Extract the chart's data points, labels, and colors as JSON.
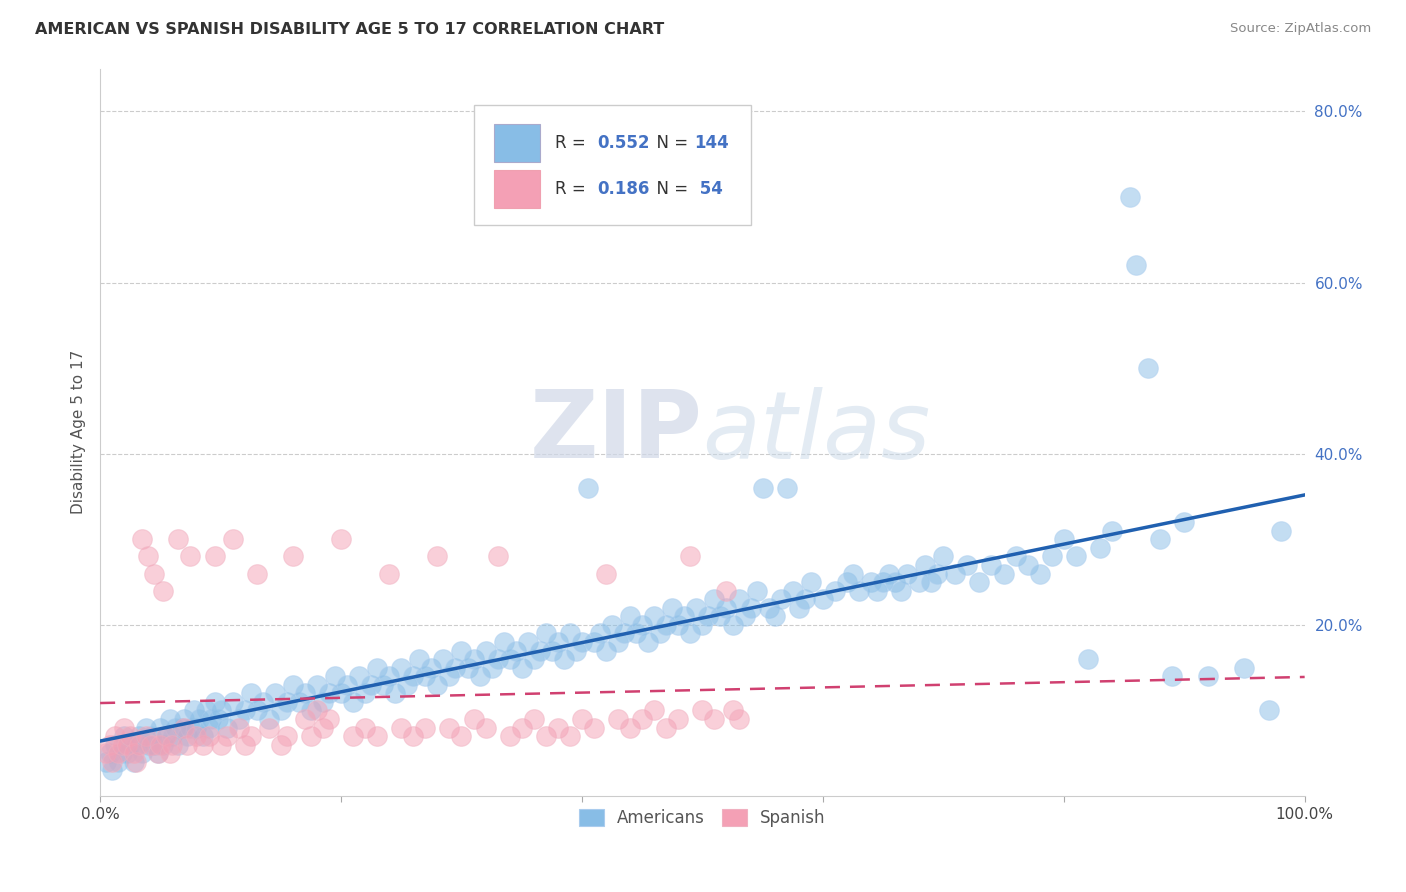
{
  "title": "AMERICAN VS SPANISH DISABILITY AGE 5 TO 17 CORRELATION CHART",
  "source": "Source: ZipAtlas.com",
  "ylabel": "Disability Age 5 to 17",
  "xlim": [
    0.0,
    1.0
  ],
  "ylim": [
    0.0,
    0.85
  ],
  "legend_label1": "Americans",
  "legend_label2": "Spanish",
  "watermark_zip": "ZIP",
  "watermark_atlas": "atlas",
  "blue_color": "#88bde6",
  "pink_color": "#f4a0b5",
  "blue_line_color": "#2060b0",
  "pink_line_color": "#d04070",
  "blue_scatter": [
    [
      0.005,
      0.04
    ],
    [
      0.008,
      0.05
    ],
    [
      0.01,
      0.03
    ],
    [
      0.012,
      0.06
    ],
    [
      0.015,
      0.04
    ],
    [
      0.018,
      0.05
    ],
    [
      0.02,
      0.07
    ],
    [
      0.022,
      0.05
    ],
    [
      0.025,
      0.06
    ],
    [
      0.028,
      0.04
    ],
    [
      0.03,
      0.06
    ],
    [
      0.032,
      0.07
    ],
    [
      0.035,
      0.05
    ],
    [
      0.038,
      0.08
    ],
    [
      0.04,
      0.06
    ],
    [
      0.042,
      0.07
    ],
    [
      0.045,
      0.06
    ],
    [
      0.048,
      0.05
    ],
    [
      0.05,
      0.08
    ],
    [
      0.052,
      0.06
    ],
    [
      0.055,
      0.07
    ],
    [
      0.058,
      0.09
    ],
    [
      0.06,
      0.07
    ],
    [
      0.062,
      0.08
    ],
    [
      0.065,
      0.06
    ],
    [
      0.068,
      0.08
    ],
    [
      0.07,
      0.09
    ],
    [
      0.072,
      0.07
    ],
    [
      0.075,
      0.08
    ],
    [
      0.078,
      0.1
    ],
    [
      0.08,
      0.08
    ],
    [
      0.082,
      0.09
    ],
    [
      0.085,
      0.07
    ],
    [
      0.088,
      0.1
    ],
    [
      0.09,
      0.08
    ],
    [
      0.092,
      0.09
    ],
    [
      0.095,
      0.11
    ],
    [
      0.098,
      0.09
    ],
    [
      0.1,
      0.1
    ],
    [
      0.105,
      0.08
    ],
    [
      0.11,
      0.11
    ],
    [
      0.115,
      0.09
    ],
    [
      0.12,
      0.1
    ],
    [
      0.125,
      0.12
    ],
    [
      0.13,
      0.1
    ],
    [
      0.135,
      0.11
    ],
    [
      0.14,
      0.09
    ],
    [
      0.145,
      0.12
    ],
    [
      0.15,
      0.1
    ],
    [
      0.155,
      0.11
    ],
    [
      0.16,
      0.13
    ],
    [
      0.165,
      0.11
    ],
    [
      0.17,
      0.12
    ],
    [
      0.175,
      0.1
    ],
    [
      0.18,
      0.13
    ],
    [
      0.185,
      0.11
    ],
    [
      0.19,
      0.12
    ],
    [
      0.195,
      0.14
    ],
    [
      0.2,
      0.12
    ],
    [
      0.205,
      0.13
    ],
    [
      0.21,
      0.11
    ],
    [
      0.215,
      0.14
    ],
    [
      0.22,
      0.12
    ],
    [
      0.225,
      0.13
    ],
    [
      0.23,
      0.15
    ],
    [
      0.235,
      0.13
    ],
    [
      0.24,
      0.14
    ],
    [
      0.245,
      0.12
    ],
    [
      0.25,
      0.15
    ],
    [
      0.255,
      0.13
    ],
    [
      0.26,
      0.14
    ],
    [
      0.265,
      0.16
    ],
    [
      0.27,
      0.14
    ],
    [
      0.275,
      0.15
    ],
    [
      0.28,
      0.13
    ],
    [
      0.285,
      0.16
    ],
    [
      0.29,
      0.14
    ],
    [
      0.295,
      0.15
    ],
    [
      0.3,
      0.17
    ],
    [
      0.305,
      0.15
    ],
    [
      0.31,
      0.16
    ],
    [
      0.315,
      0.14
    ],
    [
      0.32,
      0.17
    ],
    [
      0.325,
      0.15
    ],
    [
      0.33,
      0.16
    ],
    [
      0.335,
      0.18
    ],
    [
      0.34,
      0.16
    ],
    [
      0.345,
      0.17
    ],
    [
      0.35,
      0.15
    ],
    [
      0.355,
      0.18
    ],
    [
      0.36,
      0.16
    ],
    [
      0.365,
      0.17
    ],
    [
      0.37,
      0.19
    ],
    [
      0.375,
      0.17
    ],
    [
      0.38,
      0.18
    ],
    [
      0.385,
      0.16
    ],
    [
      0.39,
      0.19
    ],
    [
      0.395,
      0.17
    ],
    [
      0.4,
      0.18
    ],
    [
      0.405,
      0.36
    ],
    [
      0.41,
      0.18
    ],
    [
      0.415,
      0.19
    ],
    [
      0.42,
      0.17
    ],
    [
      0.425,
      0.2
    ],
    [
      0.43,
      0.18
    ],
    [
      0.435,
      0.19
    ],
    [
      0.44,
      0.21
    ],
    [
      0.445,
      0.19
    ],
    [
      0.45,
      0.2
    ],
    [
      0.455,
      0.18
    ],
    [
      0.46,
      0.21
    ],
    [
      0.465,
      0.19
    ],
    [
      0.47,
      0.2
    ],
    [
      0.475,
      0.22
    ],
    [
      0.48,
      0.2
    ],
    [
      0.485,
      0.21
    ],
    [
      0.49,
      0.19
    ],
    [
      0.495,
      0.22
    ],
    [
      0.5,
      0.2
    ],
    [
      0.505,
      0.21
    ],
    [
      0.51,
      0.23
    ],
    [
      0.515,
      0.21
    ],
    [
      0.52,
      0.22
    ],
    [
      0.525,
      0.2
    ],
    [
      0.53,
      0.23
    ],
    [
      0.535,
      0.21
    ],
    [
      0.54,
      0.22
    ],
    [
      0.545,
      0.24
    ],
    [
      0.55,
      0.36
    ],
    [
      0.555,
      0.22
    ],
    [
      0.56,
      0.21
    ],
    [
      0.565,
      0.23
    ],
    [
      0.57,
      0.36
    ],
    [
      0.575,
      0.24
    ],
    [
      0.58,
      0.22
    ],
    [
      0.585,
      0.23
    ],
    [
      0.59,
      0.25
    ],
    [
      0.6,
      0.23
    ],
    [
      0.61,
      0.24
    ],
    [
      0.62,
      0.25
    ],
    [
      0.625,
      0.26
    ],
    [
      0.63,
      0.24
    ],
    [
      0.64,
      0.25
    ],
    [
      0.645,
      0.24
    ],
    [
      0.65,
      0.25
    ],
    [
      0.655,
      0.26
    ],
    [
      0.66,
      0.25
    ],
    [
      0.665,
      0.24
    ],
    [
      0.67,
      0.26
    ],
    [
      0.68,
      0.25
    ],
    [
      0.685,
      0.27
    ],
    [
      0.69,
      0.25
    ],
    [
      0.695,
      0.26
    ],
    [
      0.7,
      0.28
    ],
    [
      0.71,
      0.26
    ],
    [
      0.72,
      0.27
    ],
    [
      0.73,
      0.25
    ],
    [
      0.74,
      0.27
    ],
    [
      0.75,
      0.26
    ],
    [
      0.76,
      0.28
    ],
    [
      0.77,
      0.27
    ],
    [
      0.78,
      0.26
    ],
    [
      0.79,
      0.28
    ],
    [
      0.8,
      0.3
    ],
    [
      0.81,
      0.28
    ],
    [
      0.82,
      0.16
    ],
    [
      0.83,
      0.29
    ],
    [
      0.84,
      0.31
    ],
    [
      0.855,
      0.7
    ],
    [
      0.86,
      0.62
    ],
    [
      0.87,
      0.5
    ],
    [
      0.88,
      0.3
    ],
    [
      0.89,
      0.14
    ],
    [
      0.9,
      0.32
    ],
    [
      0.92,
      0.14
    ],
    [
      0.95,
      0.15
    ],
    [
      0.97,
      0.1
    ],
    [
      0.98,
      0.31
    ]
  ],
  "pink_scatter": [
    [
      0.005,
      0.05
    ],
    [
      0.008,
      0.06
    ],
    [
      0.01,
      0.04
    ],
    [
      0.012,
      0.07
    ],
    [
      0.015,
      0.05
    ],
    [
      0.018,
      0.06
    ],
    [
      0.02,
      0.08
    ],
    [
      0.022,
      0.06
    ],
    [
      0.025,
      0.07
    ],
    [
      0.028,
      0.05
    ],
    [
      0.03,
      0.04
    ],
    [
      0.032,
      0.06
    ],
    [
      0.035,
      0.3
    ],
    [
      0.038,
      0.07
    ],
    [
      0.04,
      0.28
    ],
    [
      0.042,
      0.06
    ],
    [
      0.045,
      0.26
    ],
    [
      0.048,
      0.05
    ],
    [
      0.05,
      0.06
    ],
    [
      0.052,
      0.24
    ],
    [
      0.055,
      0.07
    ],
    [
      0.058,
      0.05
    ],
    [
      0.06,
      0.06
    ],
    [
      0.065,
      0.3
    ],
    [
      0.07,
      0.08
    ],
    [
      0.072,
      0.06
    ],
    [
      0.075,
      0.28
    ],
    [
      0.08,
      0.07
    ],
    [
      0.085,
      0.06
    ],
    [
      0.09,
      0.07
    ],
    [
      0.095,
      0.28
    ],
    [
      0.1,
      0.06
    ],
    [
      0.105,
      0.07
    ],
    [
      0.11,
      0.3
    ],
    [
      0.115,
      0.08
    ],
    [
      0.12,
      0.06
    ],
    [
      0.125,
      0.07
    ],
    [
      0.13,
      0.26
    ],
    [
      0.14,
      0.08
    ],
    [
      0.15,
      0.06
    ],
    [
      0.155,
      0.07
    ],
    [
      0.16,
      0.28
    ],
    [
      0.17,
      0.09
    ],
    [
      0.175,
      0.07
    ],
    [
      0.18,
      0.1
    ],
    [
      0.185,
      0.08
    ],
    [
      0.19,
      0.09
    ],
    [
      0.2,
      0.3
    ],
    [
      0.21,
      0.07
    ],
    [
      0.22,
      0.08
    ],
    [
      0.23,
      0.07
    ],
    [
      0.24,
      0.26
    ],
    [
      0.25,
      0.08
    ],
    [
      0.26,
      0.07
    ],
    [
      0.27,
      0.08
    ],
    [
      0.28,
      0.28
    ],
    [
      0.29,
      0.08
    ],
    [
      0.3,
      0.07
    ],
    [
      0.31,
      0.09
    ],
    [
      0.32,
      0.08
    ],
    [
      0.33,
      0.28
    ],
    [
      0.34,
      0.07
    ],
    [
      0.35,
      0.08
    ],
    [
      0.36,
      0.09
    ],
    [
      0.37,
      0.07
    ],
    [
      0.38,
      0.08
    ],
    [
      0.39,
      0.07
    ],
    [
      0.4,
      0.09
    ],
    [
      0.41,
      0.08
    ],
    [
      0.42,
      0.26
    ],
    [
      0.43,
      0.09
    ],
    [
      0.44,
      0.08
    ],
    [
      0.45,
      0.09
    ],
    [
      0.46,
      0.1
    ],
    [
      0.47,
      0.08
    ],
    [
      0.48,
      0.09
    ],
    [
      0.49,
      0.28
    ],
    [
      0.5,
      0.1
    ],
    [
      0.51,
      0.09
    ],
    [
      0.52,
      0.24
    ],
    [
      0.525,
      0.1
    ],
    [
      0.53,
      0.09
    ]
  ],
  "blue_r": 0.552,
  "blue_n": 144,
  "pink_r": 0.186,
  "pink_n": 54
}
